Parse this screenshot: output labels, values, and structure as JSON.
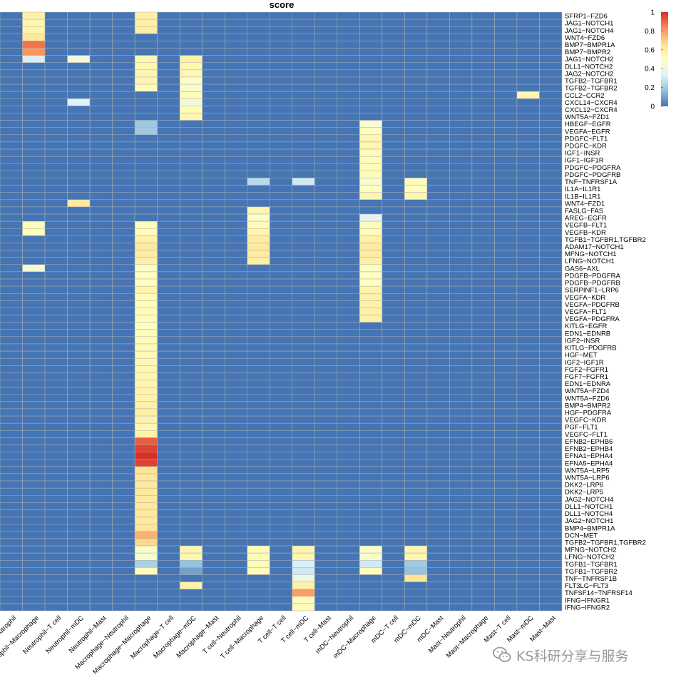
{
  "chart_data": {
    "type": "heatmap",
    "title": "score",
    "rows": [
      "SFRP1−FZD6",
      "JAG1−NOTCH1",
      "JAG1−NOTCH4",
      "WNT4−FZD6",
      "BMP7−BMPR1A",
      "BMP7−BMPR2",
      "JAG1−NOTCH2",
      "DLL1−NOTCH2",
      "JAG2−NOTCH2",
      "TGFB2−TGFBR1",
      "TGFB2−TGFBR2",
      "CCL2−CCR2",
      "CXCL14−CXCR4",
      "CXCL12−CXCR4",
      "WNT5A−FZD1",
      "HBEGF−EGFR",
      "VEGFA−EGFR",
      "PDGFC−FLT1",
      "PDGFC−KDR",
      "IGF1−INSR",
      "IGF1−IGF1R",
      "PDGFC−PDGFRA",
      "PDGFC−PDGFRB",
      "TNF−TNFRSF1A",
      "IL1A−IL1R1",
      "IL1B−IL1R1",
      "WNT4−FZD1",
      "FASLG−FAS",
      "AREG−EGFR",
      "VEGFB−FLT1",
      "VEGFB−KDR",
      "TGFB1−TGFBR1,TGFBR2",
      "ADAM17−NOTCH1",
      "MFNG−NOTCH1",
      "LFNG−NOTCH1",
      "GAS6−AXL",
      "PDGFB−PDGFRA",
      "PDGFB−PDGFRB",
      "SERPINF1−LRP6",
      "VEGFA−KDR",
      "VEGFA−PDGFRB",
      "VEGFA−FLT1",
      "VEGFA−PDGFRA",
      "KITLG−EGFR",
      "EDN1−EDNRB",
      "IGF2−INSR",
      "KITLG−PDGFRB",
      "HGF−MET",
      "IGF2−IGF1R",
      "FGF2−FGFR1",
      "FGF7−FGFR1",
      "EDN1−EDNRA",
      "WNT5A−FZD4",
      "WNT5A−FZD6",
      "BMP4−BMPR2",
      "HGF−PDGFRA",
      "VEGFC−KDR",
      "PGF−FLT1",
      "VEGFC−FLT1",
      "EFNB2−EPHB6",
      "EFNB2−EPHB4",
      "EFNA1−EPHA4",
      "EFNA5−EPHA4",
      "WNT5A−LRP5",
      "WNT5A−LRP6",
      "DKK2−LRP6",
      "DKK2−LRP5",
      "JAG2−NOTCH4",
      "DLL1−NOTCH1",
      "DLL1−NOTCH4",
      "JAG2−NOTCH1",
      "BMP4−BMPR1A",
      "DCN−MET",
      "TGFB2−TGFBR1,TGFBR2",
      "MFNG−NOTCH2",
      "LFNG−NOTCH2",
      "TGFB1−TGFBR1",
      "TGFB1−TGFBR2",
      "TNF−TNFRSF1B",
      "FLT3LG−FLT3",
      "TNFSF14−TNFRSF14",
      "IFNG−IFNGR1",
      "IFNG−IFNGR2"
    ],
    "columns": [
      "Neutrophil−Neutrophil",
      "Neutrophil−Macrophage",
      "Neutrophil−T cell",
      "Neutrophil−mDC",
      "Neutrophil−Mast",
      "Macrophage−Neutrophil",
      "Macrophage−Macrophage",
      "Macrophage−T cell",
      "Macrophage−mDC",
      "Macrophage−Mast",
      "T cell−Neutrophil",
      "T cell−Macrophage",
      "T cell−T cell",
      "T cell−mDC",
      "T cell−Mast",
      "mDC−Neutrophil",
      "mDC−Macrophage",
      "mDC−T cell",
      "mDC−mDC",
      "mDC−Mast",
      "Mast−Neutrophil",
      "Mast−Macrophage",
      "Mast−T cell",
      "Mast−mDC",
      "Mast−Mast"
    ],
    "column_labels_visible": [
      "Neutrophil",
      "Neutrophil−Macrophage",
      "Neutrophil−T cell",
      "Neutrophil−mDC",
      "Neutrophil−Mast",
      "Macrophage−Neutrophil",
      "Macrophage−Macrophage",
      "Macrophage−T cell",
      "Macrophage−mDC",
      "Macrophage−Mast",
      "T cell−Neutrophil",
      "T cell−Macrophage",
      "T cell−T cell",
      "T cell−mDC",
      "T cell−Mast",
      "mDC−Neutrophil",
      "mDC−Macrophage",
      "mDC−T cell",
      "mDC−mDC",
      "mDC−Mast",
      "Mast−Neutrophil",
      "Mast−Macrophage",
      "Mast−T cell",
      "Mast−mDC",
      "Mast−Mast"
    ],
    "nonzero_cells": [
      {
        "row": "SFRP1−FZD6",
        "col": "Neutrophil−Macrophage",
        "value": 0.58
      },
      {
        "row": "SFRP1−FZD6",
        "col": "Macrophage−Macrophage",
        "value": 0.58
      },
      {
        "row": "JAG1−NOTCH1",
        "col": "Neutrophil−Macrophage",
        "value": 0.55
      },
      {
        "row": "JAG1−NOTCH1",
        "col": "Macrophage−Macrophage",
        "value": 0.58
      },
      {
        "row": "JAG1−NOTCH4",
        "col": "Neutrophil−Macrophage",
        "value": 0.56
      },
      {
        "row": "JAG1−NOTCH4",
        "col": "Macrophage−Macrophage",
        "value": 0.6
      },
      {
        "row": "WNT4−FZD6",
        "col": "Neutrophil−Macrophage",
        "value": 0.62
      },
      {
        "row": "BMP7−BMPR1A",
        "col": "Neutrophil−Macrophage",
        "value": 0.88
      },
      {
        "row": "BMP7−BMPR2",
        "col": "Neutrophil−Macrophage",
        "value": 0.82
      },
      {
        "row": "JAG1−NOTCH2",
        "col": "Neutrophil−Macrophage",
        "value": 0.32
      },
      {
        "row": "JAG1−NOTCH2",
        "col": "Neutrophil−mDC",
        "value": 0.42
      },
      {
        "row": "JAG1−NOTCH2",
        "col": "Macrophage−Macrophage",
        "value": 0.55
      },
      {
        "row": "JAG1−NOTCH2",
        "col": "Macrophage−mDC",
        "value": 0.58
      },
      {
        "row": "DLL1−NOTCH2",
        "col": "Macrophage−Macrophage",
        "value": 0.55
      },
      {
        "row": "DLL1−NOTCH2",
        "col": "Macrophage−mDC",
        "value": 0.55
      },
      {
        "row": "JAG2−NOTCH2",
        "col": "Macrophage−Macrophage",
        "value": 0.55
      },
      {
        "row": "JAG2−NOTCH2",
        "col": "Macrophage−mDC",
        "value": 0.55
      },
      {
        "row": "TGFB2−TGFBR1",
        "col": "Macrophage−Macrophage",
        "value": 0.55
      },
      {
        "row": "TGFB2−TGFBR1",
        "col": "Macrophage−mDC",
        "value": 0.48
      },
      {
        "row": "TGFB2−TGFBR2",
        "col": "Macrophage−Macrophage",
        "value": 0.52
      },
      {
        "row": "TGFB2−TGFBR2",
        "col": "Macrophage−mDC",
        "value": 0.47
      },
      {
        "row": "CCL2−CCR2",
        "col": "Macrophage−mDC",
        "value": 0.52
      },
      {
        "row": "CCL2−CCR2",
        "col": "Mast−mDC",
        "value": 0.55
      },
      {
        "row": "CXCL14−CXCR4",
        "col": "Neutrophil−mDC",
        "value": 0.33
      },
      {
        "row": "CXCL14−CXCR4",
        "col": "Macrophage−mDC",
        "value": 0.42
      },
      {
        "row": "CXCL12−CXCR4",
        "col": "Macrophage−mDC",
        "value": 0.52
      },
      {
        "row": "WNT5A−FZD1",
        "col": "Macrophage−mDC",
        "value": 0.55
      },
      {
        "row": "HBEGF−EGFR",
        "col": "Macrophage−Macrophage",
        "value": 0.2
      },
      {
        "row": "HBEGF−EGFR",
        "col": "mDC−Macrophage",
        "value": 0.45
      },
      {
        "row": "VEGFA−EGFR",
        "col": "Macrophage−Macrophage",
        "value": 0.2
      },
      {
        "row": "VEGFA−EGFR",
        "col": "mDC−Macrophage",
        "value": 0.5
      },
      {
        "row": "PDGFC−FLT1",
        "col": "mDC−Macrophage",
        "value": 0.55
      },
      {
        "row": "PDGFC−KDR",
        "col": "mDC−Macrophage",
        "value": 0.55
      },
      {
        "row": "IGF1−INSR",
        "col": "mDC−Macrophage",
        "value": 0.52
      },
      {
        "row": "IGF1−IGF1R",
        "col": "mDC−Macrophage",
        "value": 0.52
      },
      {
        "row": "PDGFC−PDGFRA",
        "col": "mDC−Macrophage",
        "value": 0.52
      },
      {
        "row": "PDGFC−PDGFRB",
        "col": "mDC−Macrophage",
        "value": 0.52
      },
      {
        "row": "TNF−TNFRSF1A",
        "col": "T cell−Macrophage",
        "value": 0.25
      },
      {
        "row": "TNF−TNFRSF1A",
        "col": "T cell−mDC",
        "value": 0.3
      },
      {
        "row": "TNF−TNFRSF1A",
        "col": "mDC−Macrophage",
        "value": 0.45
      },
      {
        "row": "TNF−TNFRSF1A",
        "col": "mDC−mDC",
        "value": 0.52
      },
      {
        "row": "IL1A−IL1R1",
        "col": "mDC−Macrophage",
        "value": 0.5
      },
      {
        "row": "IL1A−IL1R1",
        "col": "mDC−mDC",
        "value": 0.5
      },
      {
        "row": "IL1B−IL1R1",
        "col": "mDC−Macrophage",
        "value": 0.55
      },
      {
        "row": "IL1B−IL1R1",
        "col": "mDC−mDC",
        "value": 0.55
      },
      {
        "row": "WNT4−FZD1",
        "col": "Neutrophil−mDC",
        "value": 0.62
      },
      {
        "row": "FASLG−FAS",
        "col": "T cell−Macrophage",
        "value": 0.55
      },
      {
        "row": "AREG−EGFR",
        "col": "T cell−Macrophage",
        "value": 0.48
      },
      {
        "row": "AREG−EGFR",
        "col": "mDC−Macrophage",
        "value": 0.35
      },
      {
        "row": "VEGFB−FLT1",
        "col": "Neutrophil−Macrophage",
        "value": 0.52
      },
      {
        "row": "VEGFB−FLT1",
        "col": "Macrophage−Macrophage",
        "value": 0.52
      },
      {
        "row": "VEGFB−FLT1",
        "col": "T cell−Macrophage",
        "value": 0.52
      },
      {
        "row": "VEGFB−FLT1",
        "col": "mDC−Macrophage",
        "value": 0.52
      },
      {
        "row": "VEGFB−KDR",
        "col": "Neutrophil−Macrophage",
        "value": 0.52
      },
      {
        "row": "VEGFB−KDR",
        "col": "Macrophage−Macrophage",
        "value": 0.52
      },
      {
        "row": "VEGFB−KDR",
        "col": "T cell−Macrophage",
        "value": 0.55
      },
      {
        "row": "VEGFB−KDR",
        "col": "mDC−Macrophage",
        "value": 0.52
      },
      {
        "row": "TGFB1−TGFBR1,TGFBR2",
        "col": "Macrophage−Macrophage",
        "value": 0.58
      },
      {
        "row": "TGFB1−TGFBR1,TGFBR2",
        "col": "T cell−Macrophage",
        "value": 0.6
      },
      {
        "row": "TGFB1−TGFBR1,TGFBR2",
        "col": "mDC−Macrophage",
        "value": 0.58
      },
      {
        "row": "ADAM17−NOTCH1",
        "col": "Macrophage−Macrophage",
        "value": 0.62
      },
      {
        "row": "ADAM17−NOTCH1",
        "col": "T cell−Macrophage",
        "value": 0.62
      },
      {
        "row": "ADAM17−NOTCH1",
        "col": "mDC−Macrophage",
        "value": 0.62
      },
      {
        "row": "MFNG−NOTCH1",
        "col": "Macrophage−Macrophage",
        "value": 0.6
      },
      {
        "row": "MFNG−NOTCH1",
        "col": "T cell−Macrophage",
        "value": 0.6
      },
      {
        "row": "MFNG−NOTCH1",
        "col": "mDC−Macrophage",
        "value": 0.6
      },
      {
        "row": "LFNG−NOTCH1",
        "col": "Macrophage−Macrophage",
        "value": 0.58
      },
      {
        "row": "LFNG−NOTCH1",
        "col": "T cell−Macrophage",
        "value": 0.58
      },
      {
        "row": "LFNG−NOTCH1",
        "col": "mDC−Macrophage",
        "value": 0.58
      },
      {
        "row": "GAS6−AXL",
        "col": "Neutrophil−Macrophage",
        "value": 0.45
      },
      {
        "row": "GAS6−AXL",
        "col": "Macrophage−Macrophage",
        "value": 0.48
      },
      {
        "row": "GAS6−AXL",
        "col": "mDC−Macrophage",
        "value": 0.48
      },
      {
        "row": "PDGFB−PDGFRA",
        "col": "Macrophage−Macrophage",
        "value": 0.5
      },
      {
        "row": "PDGFB−PDGFRA",
        "col": "mDC−Macrophage",
        "value": 0.5
      },
      {
        "row": "PDGFB−PDGFRB",
        "col": "Macrophage−Macrophage",
        "value": 0.5
      },
      {
        "row": "PDGFB−PDGFRB",
        "col": "mDC−Macrophage",
        "value": 0.5
      },
      {
        "row": "SERPINF1−LRP6",
        "col": "Macrophage−Macrophage",
        "value": 0.56
      },
      {
        "row": "SERPINF1−LRP6",
        "col": "mDC−Macrophage",
        "value": 0.56
      },
      {
        "row": "VEGFA−KDR",
        "col": "Macrophage−Macrophage",
        "value": 0.52
      },
      {
        "row": "VEGFA−KDR",
        "col": "mDC−Macrophage",
        "value": 0.58
      },
      {
        "row": "VEGFA−PDGFRB",
        "col": "Macrophage−Macrophage",
        "value": 0.52
      },
      {
        "row": "VEGFA−PDGFRB",
        "col": "mDC−Macrophage",
        "value": 0.58
      },
      {
        "row": "VEGFA−FLT1",
        "col": "Macrophage−Macrophage",
        "value": 0.52
      },
      {
        "row": "VEGFA−FLT1",
        "col": "mDC−Macrophage",
        "value": 0.58
      },
      {
        "row": "VEGFA−PDGFRA",
        "col": "Macrophage−Macrophage",
        "value": 0.52
      },
      {
        "row": "VEGFA−PDGFRA",
        "col": "mDC−Macrophage",
        "value": 0.58
      },
      {
        "row": "KITLG−EGFR",
        "col": "Macrophage−Macrophage",
        "value": 0.48
      },
      {
        "row": "EDN1−EDNRB",
        "col": "Macrophage−Macrophage",
        "value": 0.52
      },
      {
        "row": "IGF2−INSR",
        "col": "Macrophage−Macrophage",
        "value": 0.52
      },
      {
        "row": "KITLG−PDGFRB",
        "col": "Macrophage−Macrophage",
        "value": 0.52
      },
      {
        "row": "HGF−MET",
        "col": "Macrophage−Macrophage",
        "value": 0.53
      },
      {
        "row": "IGF2−IGF1R",
        "col": "Macrophage−Macrophage",
        "value": 0.54
      },
      {
        "row": "FGF2−FGFR1",
        "col": "Macrophage−Macrophage",
        "value": 0.55
      },
      {
        "row": "FGF7−FGFR1",
        "col": "Macrophage−Macrophage",
        "value": 0.55
      },
      {
        "row": "EDN1−EDNRA",
        "col": "Macrophage−Macrophage",
        "value": 0.55
      },
      {
        "row": "WNT5A−FZD4",
        "col": "Macrophage−Macrophage",
        "value": 0.56
      },
      {
        "row": "WNT5A−FZD6",
        "col": "Macrophage−Macrophage",
        "value": 0.57
      },
      {
        "row": "BMP4−BMPR2",
        "col": "Macrophage−Macrophage",
        "value": 0.58
      },
      {
        "row": "HGF−PDGFRA",
        "col": "Macrophage−Macrophage",
        "value": 0.58
      },
      {
        "row": "VEGFC−KDR",
        "col": "Macrophage−Macrophage",
        "value": 0.56
      },
      {
        "row": "PGF−FLT1",
        "col": "Macrophage−Macrophage",
        "value": 0.55
      },
      {
        "row": "VEGFC−FLT1",
        "col": "Macrophage−Macrophage",
        "value": 0.56
      },
      {
        "row": "EFNB2−EPHB6",
        "col": "Macrophage−Macrophage",
        "value": 0.92
      },
      {
        "row": "EFNB2−EPHB4",
        "col": "Macrophage−Macrophage",
        "value": 0.97
      },
      {
        "row": "EFNA1−EPHA4",
        "col": "Macrophage−Macrophage",
        "value": 1.0
      },
      {
        "row": "EFNA5−EPHA4",
        "col": "Macrophage−Macrophage",
        "value": 0.97
      },
      {
        "row": "WNT5A−LRP5",
        "col": "Macrophage−Macrophage",
        "value": 0.64
      },
      {
        "row": "WNT5A−LRP6",
        "col": "Macrophage−Macrophage",
        "value": 0.63
      },
      {
        "row": "DKK2−LRP6",
        "col": "Macrophage−Macrophage",
        "value": 0.62
      },
      {
        "row": "DKK2−LRP5",
        "col": "Macrophage−Macrophage",
        "value": 0.62
      },
      {
        "row": "JAG2−NOTCH4",
        "col": "Macrophage−Macrophage",
        "value": 0.62
      },
      {
        "row": "DLL1−NOTCH1",
        "col": "Macrophage−Macrophage",
        "value": 0.62
      },
      {
        "row": "DLL1−NOTCH4",
        "col": "Macrophage−Macrophage",
        "value": 0.62
      },
      {
        "row": "JAG2−NOTCH1",
        "col": "Macrophage−Macrophage",
        "value": 0.62
      },
      {
        "row": "BMP4−BMPR1A",
        "col": "Macrophage−Macrophage",
        "value": 0.64
      },
      {
        "row": "DCN−MET",
        "col": "Macrophage−Macrophage",
        "value": 0.76
      },
      {
        "row": "TGFB2−TGFBR1,TGFBR2",
        "col": "Macrophage−Macrophage",
        "value": 0.68
      },
      {
        "row": "MFNG−NOTCH2",
        "col": "Macrophage−Macrophage",
        "value": 0.47
      },
      {
        "row": "MFNG−NOTCH2",
        "col": "Macrophage−mDC",
        "value": 0.55
      },
      {
        "row": "MFNG−NOTCH2",
        "col": "T cell−Macrophage",
        "value": 0.52
      },
      {
        "row": "MFNG−NOTCH2",
        "col": "T cell−mDC",
        "value": 0.55
      },
      {
        "row": "MFNG−NOTCH2",
        "col": "mDC−Macrophage",
        "value": 0.47
      },
      {
        "row": "MFNG−NOTCH2",
        "col": "mDC−mDC",
        "value": 0.55
      },
      {
        "row": "LFNG−NOTCH2",
        "col": "Macrophage−Macrophage",
        "value": 0.46
      },
      {
        "row": "LFNG−NOTCH2",
        "col": "Macrophage−mDC",
        "value": 0.55
      },
      {
        "row": "LFNG−NOTCH2",
        "col": "T cell−Macrophage",
        "value": 0.52
      },
      {
        "row": "LFNG−NOTCH2",
        "col": "T cell−mDC",
        "value": 0.55
      },
      {
        "row": "LFNG−NOTCH2",
        "col": "mDC−Macrophage",
        "value": 0.47
      },
      {
        "row": "LFNG−NOTCH2",
        "col": "mDC−mDC",
        "value": 0.55
      },
      {
        "row": "TGFB1−TGFBR1",
        "col": "Macrophage−Macrophage",
        "value": 0.22
      },
      {
        "row": "TGFB1−TGFBR1",
        "col": "Macrophage−mDC",
        "value": 0.18
      },
      {
        "row": "TGFB1−TGFBR1",
        "col": "T cell−Macrophage",
        "value": 0.52
      },
      {
        "row": "TGFB1−TGFBR1",
        "col": "T cell−mDC",
        "value": 0.32
      },
      {
        "row": "TGFB1−TGFBR1",
        "col": "mDC−Macrophage",
        "value": 0.3
      },
      {
        "row": "TGFB1−TGFBR1",
        "col": "mDC−mDC",
        "value": 0.2
      },
      {
        "row": "TGFB1−TGFBR2",
        "col": "Macrophage−Macrophage",
        "value": 0.52
      },
      {
        "row": "TGFB1−TGFBR2",
        "col": "Macrophage−mDC",
        "value": 0.1
      },
      {
        "row": "TGFB1−TGFBR2",
        "col": "T cell−Macrophage",
        "value": 0.52
      },
      {
        "row": "TGFB1−TGFBR2",
        "col": "T cell−mDC",
        "value": 0.3
      },
      {
        "row": "TGFB1−TGFBR2",
        "col": "mDC−Macrophage",
        "value": 0.52
      },
      {
        "row": "TGFB1−TGFBR2",
        "col": "mDC−mDC",
        "value": 0.18
      },
      {
        "row": "TNF−TNFRSF1B",
        "col": "T cell−mDC",
        "value": 0.4
      },
      {
        "row": "TNF−TNFRSF1B",
        "col": "mDC−mDC",
        "value": 0.64
      },
      {
        "row": "FLT3LG−FLT3",
        "col": "Macrophage−mDC",
        "value": 0.58
      },
      {
        "row": "FLT3LG−FLT3",
        "col": "T cell−mDC",
        "value": 0.58
      },
      {
        "row": "TNFSF14−TNFRSF14",
        "col": "T cell−mDC",
        "value": 0.8
      },
      {
        "row": "IFNG−IFNGR1",
        "col": "T cell−mDC",
        "value": 0.52
      },
      {
        "row": "IFNG−IFNGR2",
        "col": "T cell−mDC",
        "value": 0.52
      }
    ],
    "legend": {
      "ticks": [
        "1",
        "0.8",
        "0.6",
        "0.4",
        "0.2",
        "0"
      ],
      "min": 0,
      "max": 1,
      "colors": [
        "#4575b4",
        "#91bfdb",
        "#e0f3f8",
        "#ffffbf",
        "#fee090",
        "#fc8d59",
        "#d73027"
      ],
      "position": "top-right"
    }
  },
  "watermark": {
    "text": "KS科研分享与服务",
    "icon": "wechat-icon"
  }
}
